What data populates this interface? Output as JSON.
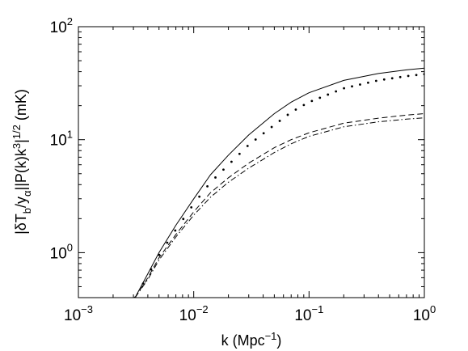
{
  "chart_data": {
    "type": "line",
    "title": "",
    "xlabel": "k (Mpc⁻¹)",
    "ylabel": "|δT_b/y_α||P(k)k³|^{1/2} (mK)",
    "xscale": "log",
    "yscale": "log",
    "xlim": [
      0.001,
      1
    ],
    "ylim": [
      0.4,
      100
    ],
    "x_ticks": [
      {
        "value": 0.001,
        "base": "10",
        "exp": "−3"
      },
      {
        "value": 0.01,
        "base": "10",
        "exp": "−2"
      },
      {
        "value": 0.1,
        "base": "10",
        "exp": "−1"
      },
      {
        "value": 1,
        "base": "10",
        "exp": "0"
      }
    ],
    "y_ticks": [
      {
        "value": 1,
        "base": "10",
        "exp": "0"
      },
      {
        "value": 10,
        "base": "10",
        "exp": "1"
      },
      {
        "value": 100,
        "base": "10",
        "exp": "2"
      }
    ],
    "grid": false,
    "legend": "none",
    "series": [
      {
        "style": "solid",
        "x": [
          0.0031,
          0.004,
          0.005,
          0.007,
          0.01,
          0.014,
          0.02,
          0.03,
          0.05,
          0.07,
          0.1,
          0.2,
          0.4,
          0.7,
          1.0
        ],
        "y": [
          0.4,
          0.65,
          1.0,
          1.75,
          3.0,
          4.9,
          7.3,
          11.0,
          17.0,
          21.5,
          26.0,
          33.5,
          38.5,
          41.5,
          43.0
        ]
      },
      {
        "style": "dotted",
        "x": [
          0.0031,
          0.004,
          0.005,
          0.007,
          0.01,
          0.014,
          0.02,
          0.03,
          0.05,
          0.07,
          0.1,
          0.2,
          0.4,
          0.7,
          1.0
        ],
        "y": [
          0.4,
          0.63,
          0.95,
          1.6,
          2.7,
          4.2,
          6.0,
          9.0,
          13.5,
          17.5,
          21.5,
          28.5,
          33.5,
          36.5,
          38.0
        ]
      },
      {
        "style": "dashed",
        "x": [
          0.0031,
          0.004,
          0.005,
          0.007,
          0.01,
          0.014,
          0.02,
          0.03,
          0.05,
          0.07,
          0.1,
          0.2,
          0.4,
          0.7,
          1.0
        ],
        "y": [
          0.4,
          0.6,
          0.9,
          1.45,
          2.3,
          3.4,
          4.6,
          6.2,
          8.5,
          10.0,
          11.5,
          14.0,
          15.5,
          16.5,
          17.0
        ]
      },
      {
        "style": "dashdot",
        "x": [
          0.0031,
          0.004,
          0.005,
          0.007,
          0.01,
          0.014,
          0.02,
          0.03,
          0.05,
          0.07,
          0.1,
          0.2,
          0.4,
          0.7,
          1.0
        ],
        "y": [
          0.4,
          0.58,
          0.86,
          1.38,
          2.15,
          3.1,
          4.2,
          5.6,
          7.7,
          9.2,
          10.7,
          13.0,
          14.4,
          15.2,
          15.6
        ]
      }
    ]
  }
}
